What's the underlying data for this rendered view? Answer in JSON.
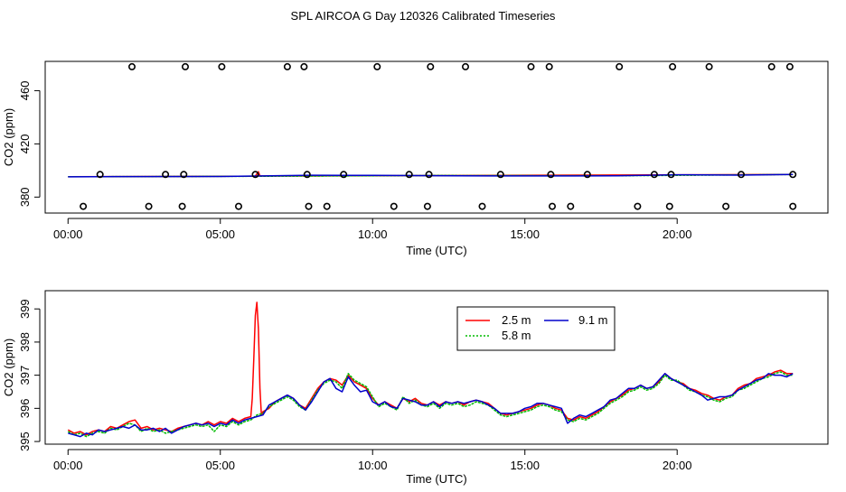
{
  "figure_title": "SPL AIRCOA G  Day 120326  Calibrated Timeseries",
  "chart_data": [
    {
      "type": "line",
      "title": "",
      "xlabel": "Time (UTC)",
      "ylabel": "CO2 (ppm)",
      "xlim": [
        -0.75,
        24.95
      ],
      "ylim": [
        368,
        482
      ],
      "x_tick_values": [
        0,
        5,
        10,
        15,
        20
      ],
      "x_tick_labels": [
        "00:00",
        "05:00",
        "10:00",
        "15:00",
        "20:00"
      ],
      "y_tick_values": [
        380,
        420,
        460
      ],
      "y_tick_labels": [
        "380",
        "420",
        "460"
      ],
      "series": [
        {
          "name": "2.5 m",
          "color": "#ff0000",
          "x": [
            0,
            6.15,
            6.2,
            6.25,
            6.3,
            23.8
          ],
          "y": [
            395.3,
            395.7,
            397.5,
            399.1,
            395.8,
            397.0
          ]
        },
        {
          "name": "5.8 m",
          "color": "#00bb00",
          "x": [
            0,
            6,
            12,
            18,
            23.8
          ],
          "y": [
            395.3,
            395.6,
            396.2,
            396.0,
            397.0
          ]
        },
        {
          "name": "9.1 m",
          "color": "#0000cc",
          "x": [
            0,
            2,
            5,
            8,
            10,
            12,
            14,
            16,
            18,
            20,
            22,
            23.8
          ],
          "y": [
            395.2,
            395.4,
            395.5,
            396.4,
            396.3,
            396.1,
            395.9,
            395.9,
            396.0,
            396.8,
            396.5,
            397.0
          ]
        }
      ],
      "markers": {
        "label": "circles",
        "top_row": {
          "y": 478,
          "x": [
            2.1,
            3.85,
            5.05,
            7.2,
            7.75,
            10.15,
            11.9,
            13.05,
            15.2,
            15.8,
            18.1,
            19.85,
            21.05,
            23.1,
            23.7
          ]
        },
        "middle_row": {
          "y": 397,
          "x": [
            1.05,
            3.2,
            3.8,
            6.15,
            7.85,
            9.05,
            11.2,
            11.85,
            14.2,
            15.85,
            17.05,
            19.25,
            19.8,
            22.1,
            23.8
          ]
        },
        "bottom_row": {
          "y": 373,
          "x": [
            0.5,
            2.65,
            3.75,
            5.6,
            7.9,
            8.5,
            10.7,
            11.8,
            13.6,
            15.9,
            16.5,
            18.7,
            19.75,
            21.6,
            23.8
          ]
        }
      }
    },
    {
      "type": "line",
      "title": "",
      "xlabel": "Time (UTC)",
      "ylabel": "CO2 (ppm)",
      "xlim": [
        -0.75,
        24.95
      ],
      "ylim": [
        394.92,
        399.55
      ],
      "x_tick_values": [
        0,
        5,
        10,
        15,
        20
      ],
      "x_tick_labels": [
        "00:00",
        "05:00",
        "10:00",
        "15:00",
        "20:00"
      ],
      "y_tick_values": [
        395,
        396,
        397,
        398,
        399
      ],
      "y_tick_labels": [
        "395",
        "396",
        "397",
        "398",
        "399"
      ],
      "legend": {
        "position": "top-center",
        "columns": 2
      },
      "series": [
        {
          "name": "2.5 m",
          "color": "#ff0000",
          "x": [
            0,
            0.2,
            0.4,
            0.6,
            0.8,
            1.0,
            1.2,
            1.4,
            1.6,
            1.8,
            2.0,
            2.2,
            2.4,
            2.6,
            2.8,
            3.0,
            3.2,
            3.4,
            3.6,
            3.8,
            4.0,
            4.2,
            4.4,
            4.6,
            4.8,
            5.0,
            5.2,
            5.4,
            5.6,
            5.8,
            6.0,
            6.05,
            6.1,
            6.15,
            6.2,
            6.25,
            6.3,
            6.35,
            6.4,
            6.6,
            6.8,
            7.0,
            7.2,
            7.4,
            7.6,
            7.8,
            8.0,
            8.2,
            8.4,
            8.6,
            8.8,
            9.0,
            9.2,
            9.4,
            9.6,
            9.8,
            10.0,
            10.2,
            10.4,
            10.6,
            10.8,
            11.0,
            11.2,
            11.4,
            11.6,
            11.8,
            12.0,
            12.2,
            12.4,
            12.6,
            12.8,
            13.0,
            13.2,
            13.4,
            13.6,
            13.8,
            14.0,
            14.2,
            14.4,
            14.6,
            14.8,
            15.0,
            15.2,
            15.4,
            15.6,
            15.8,
            16.0,
            16.2,
            16.4,
            16.6,
            16.8,
            17.0,
            17.2,
            17.4,
            17.6,
            17.8,
            18.0,
            18.2,
            18.4,
            18.6,
            18.8,
            19.0,
            19.2,
            19.4,
            19.6,
            19.8,
            20.0,
            20.2,
            20.4,
            20.6,
            20.8,
            21.0,
            21.2,
            21.4,
            21.6,
            21.8,
            22.0,
            22.2,
            22.4,
            22.6,
            22.8,
            23.0,
            23.2,
            23.4,
            23.6,
            23.8
          ],
          "y": [
            395.35,
            395.25,
            395.3,
            395.2,
            395.3,
            395.35,
            395.3,
            395.45,
            395.4,
            395.5,
            395.6,
            395.65,
            395.4,
            395.45,
            395.35,
            395.4,
            395.35,
            395.3,
            395.4,
            395.45,
            395.5,
            395.55,
            395.5,
            395.6,
            395.5,
            395.6,
            395.55,
            395.7,
            395.6,
            395.7,
            395.75,
            396.3,
            397.5,
            398.8,
            399.2,
            398.4,
            396.6,
            395.8,
            395.9,
            396.0,
            396.2,
            396.3,
            396.4,
            396.3,
            396.1,
            396.0,
            396.3,
            396.6,
            396.8,
            396.9,
            396.85,
            396.7,
            397.0,
            396.8,
            396.7,
            396.6,
            396.3,
            396.1,
            396.2,
            396.1,
            396.0,
            396.3,
            396.2,
            396.3,
            396.15,
            396.1,
            396.2,
            396.1,
            396.2,
            396.15,
            396.2,
            396.1,
            396.2,
            396.25,
            396.2,
            396.15,
            396.0,
            395.85,
            395.8,
            395.85,
            395.9,
            395.95,
            396.0,
            396.1,
            396.15,
            396.1,
            396.0,
            395.95,
            395.7,
            395.65,
            395.75,
            395.7,
            395.8,
            395.9,
            396.05,
            396.2,
            396.3,
            396.4,
            396.55,
            396.6,
            396.7,
            396.6,
            396.65,
            396.8,
            397.05,
            396.9,
            396.8,
            396.75,
            396.6,
            396.55,
            396.45,
            396.4,
            396.3,
            396.25,
            396.35,
            396.4,
            396.6,
            396.7,
            396.75,
            396.9,
            396.95,
            397.0,
            397.1,
            397.15,
            397.05,
            397.05
          ]
        },
        {
          "name": "5.8 m",
          "color": "#00bb00",
          "x": [
            0,
            0.2,
            0.4,
            0.6,
            0.8,
            1.0,
            1.2,
            1.4,
            1.6,
            1.8,
            2.0,
            2.2,
            2.4,
            2.6,
            2.8,
            3.0,
            3.2,
            3.4,
            3.6,
            3.8,
            4.0,
            4.2,
            4.4,
            4.6,
            4.8,
            5.0,
            5.2,
            5.4,
            5.6,
            5.8,
            6.0,
            6.2,
            6.4,
            6.6,
            6.8,
            7.0,
            7.2,
            7.4,
            7.6,
            7.8,
            8.0,
            8.2,
            8.4,
            8.6,
            8.8,
            9.0,
            9.2,
            9.4,
            9.6,
            9.8,
            10.0,
            10.2,
            10.4,
            10.6,
            10.8,
            11.0,
            11.2,
            11.4,
            11.6,
            11.8,
            12.0,
            12.2,
            12.4,
            12.6,
            12.8,
            13.0,
            13.2,
            13.4,
            13.6,
            13.8,
            14.0,
            14.2,
            14.4,
            14.6,
            14.8,
            15.0,
            15.2,
            15.4,
            15.6,
            15.8,
            16.0,
            16.2,
            16.4,
            16.6,
            16.8,
            17.0,
            17.2,
            17.4,
            17.6,
            17.8,
            18.0,
            18.2,
            18.4,
            18.6,
            18.8,
            19.0,
            19.2,
            19.4,
            19.6,
            19.8,
            20.0,
            20.2,
            20.4,
            20.6,
            20.8,
            21.0,
            21.2,
            21.4,
            21.6,
            21.8,
            22.0,
            22.2,
            22.4,
            22.6,
            22.8,
            23.0,
            23.2,
            23.4,
            23.6,
            23.8
          ],
          "y": [
            395.3,
            395.2,
            395.25,
            395.15,
            395.25,
            395.3,
            395.25,
            395.4,
            395.35,
            395.45,
            395.55,
            395.5,
            395.3,
            395.4,
            395.3,
            395.35,
            395.25,
            395.3,
            395.35,
            395.4,
            395.45,
            395.5,
            395.45,
            395.5,
            395.3,
            395.5,
            395.45,
            395.6,
            395.5,
            395.6,
            395.65,
            395.8,
            395.85,
            396.05,
            396.15,
            396.25,
            396.35,
            396.25,
            396.05,
            395.95,
            396.25,
            396.55,
            396.75,
            396.85,
            396.8,
            396.6,
            397.05,
            396.85,
            396.75,
            396.65,
            396.35,
            396.05,
            396.15,
            396.05,
            395.95,
            396.35,
            396.15,
            396.25,
            396.1,
            396.05,
            396.15,
            396.0,
            396.15,
            396.1,
            396.15,
            396.05,
            396.1,
            396.2,
            396.15,
            396.1,
            395.95,
            395.8,
            395.75,
            395.8,
            395.85,
            395.9,
            395.95,
            396.05,
            396.1,
            396.05,
            395.95,
            395.9,
            395.65,
            395.6,
            395.7,
            395.65,
            395.75,
            395.85,
            396.0,
            396.15,
            396.25,
            396.35,
            396.5,
            396.55,
            396.65,
            396.55,
            396.6,
            396.75,
            397.0,
            396.85,
            396.85,
            396.7,
            396.55,
            396.5,
            396.4,
            396.35,
            396.25,
            396.2,
            396.3,
            396.35,
            396.55,
            396.6,
            396.7,
            396.8,
            396.9,
            396.95,
            397.05,
            397.1,
            397.0,
            397.0
          ]
        },
        {
          "name": "9.1 m",
          "color": "#0000cc",
          "x": [
            0,
            0.2,
            0.4,
            0.6,
            0.8,
            1.0,
            1.2,
            1.4,
            1.6,
            1.8,
            2.0,
            2.2,
            2.4,
            2.6,
            2.8,
            3.0,
            3.2,
            3.4,
            3.6,
            3.8,
            4.0,
            4.2,
            4.4,
            4.6,
            4.8,
            5.0,
            5.2,
            5.4,
            5.6,
            5.8,
            6.0,
            6.2,
            6.4,
            6.6,
            6.8,
            7.0,
            7.2,
            7.4,
            7.6,
            7.8,
            8.0,
            8.2,
            8.4,
            8.6,
            8.8,
            9.0,
            9.2,
            9.4,
            9.6,
            9.8,
            10.0,
            10.2,
            10.4,
            10.6,
            10.8,
            11.0,
            11.2,
            11.4,
            11.6,
            11.8,
            12.0,
            12.2,
            12.4,
            12.6,
            12.8,
            13.0,
            13.2,
            13.4,
            13.6,
            13.8,
            14.0,
            14.2,
            14.4,
            14.6,
            14.8,
            15.0,
            15.2,
            15.4,
            15.6,
            15.8,
            16.0,
            16.2,
            16.4,
            16.6,
            16.8,
            17.0,
            17.2,
            17.4,
            17.6,
            17.8,
            18.0,
            18.2,
            18.4,
            18.6,
            18.8,
            19.0,
            19.2,
            19.4,
            19.6,
            19.8,
            20.0,
            20.2,
            20.4,
            20.6,
            20.8,
            21.0,
            21.2,
            21.4,
            21.6,
            21.8,
            22.0,
            22.2,
            22.4,
            22.6,
            22.8,
            23.0,
            23.2,
            23.4,
            23.6,
            23.8
          ],
          "y": [
            395.25,
            395.2,
            395.15,
            395.25,
            395.2,
            395.35,
            395.3,
            395.35,
            395.4,
            395.45,
            395.4,
            395.5,
            395.35,
            395.35,
            395.4,
            395.3,
            395.4,
            395.25,
            395.35,
            395.45,
            395.5,
            395.55,
            395.5,
            395.55,
            395.45,
            395.55,
            395.5,
            395.65,
            395.55,
            395.65,
            395.7,
            395.75,
            395.8,
            396.1,
            396.2,
            396.3,
            396.4,
            396.3,
            396.1,
            395.95,
            396.2,
            396.5,
            396.8,
            396.9,
            396.6,
            396.5,
            396.95,
            396.7,
            396.5,
            396.55,
            396.2,
            396.1,
            396.2,
            396.05,
            396.0,
            396.3,
            396.25,
            396.2,
            396.1,
            396.1,
            396.2,
            396.05,
            396.2,
            396.15,
            396.2,
            396.15,
            396.2,
            396.25,
            396.2,
            396.1,
            396.0,
            395.85,
            395.85,
            395.85,
            395.9,
            396.0,
            396.05,
            396.15,
            396.15,
            396.1,
            396.05,
            396.0,
            395.55,
            395.7,
            395.8,
            395.75,
            395.85,
            395.95,
            396.05,
            396.25,
            396.3,
            396.45,
            396.6,
            396.6,
            396.7,
            396.6,
            396.65,
            396.85,
            397.05,
            396.9,
            396.8,
            396.7,
            396.6,
            396.5,
            396.4,
            396.25,
            396.3,
            396.35,
            396.35,
            396.4,
            396.55,
            396.65,
            396.75,
            396.85,
            396.9,
            397.05,
            397.0,
            397.0,
            396.95,
            397.05
          ]
        }
      ]
    }
  ]
}
